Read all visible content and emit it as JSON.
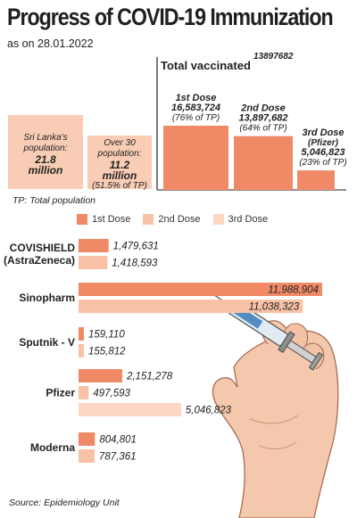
{
  "header": {
    "title": "Progress of COVID-19 Immunization",
    "subtitle": "as on 28.01.2022"
  },
  "population": {
    "sri_lanka_line1": "Sri Lanka's",
    "sri_lanka_line2": "population:",
    "sri_lanka_value": "21.8",
    "sri_lanka_unit": "million",
    "over30_line1": "Over 30",
    "over30_line2": "population:",
    "over30_value": "11.2",
    "over30_unit": "million",
    "over30_pct": "(51.5% of TP)"
  },
  "total_vaccinated": {
    "label": "Total vaccinated",
    "number": "13897682"
  },
  "doses": [
    {
      "name": "1st Dose",
      "value_text": "16,583,724",
      "pct_text": "(76% of TP)",
      "value": 16583724
    },
    {
      "name": "2nd Dose",
      "value_text": "13,897,682",
      "pct_text": "(64% of TP)",
      "value": 13897682
    },
    {
      "name": "3rd Dose",
      "name2": "(Pfizer)",
      "value_text": "5,046,823",
      "pct_text": "(23% of TP)",
      "value": 5046823
    }
  ],
  "tp_note": "TP: Total population",
  "legend": {
    "first": "1st Dose",
    "second": "2nd Dose",
    "third": "3rd Dose"
  },
  "colors": {
    "first": "#f08a66",
    "second": "#f9c2a6",
    "third": "#fbd7c4",
    "box": "#f9cdb5"
  },
  "source": "Source: Epidemiology Unit",
  "chart_data": {
    "type": "bar",
    "orientation": "horizontal",
    "categories": [
      "COVISHIELD (AstraZeneca)",
      "Sinopharm",
      "Sputnik - V",
      "Pfizer",
      "Moderna"
    ],
    "category_lines": [
      [
        "COVISHIELD",
        "(AstraZeneca)"
      ],
      [
        "Sinopharm"
      ],
      [
        "Sputnik - V"
      ],
      [
        "Pfizer"
      ],
      [
        "Moderna"
      ]
    ],
    "series": [
      {
        "name": "1st Dose",
        "values": [
          1479631,
          11988904,
          159110,
          2151278,
          804801
        ]
      },
      {
        "name": "2nd Dose",
        "values": [
          1418593,
          11038323,
          155812,
          497593,
          787361
        ]
      },
      {
        "name": "3rd Dose",
        "values": [
          null,
          null,
          null,
          5046823,
          null
        ]
      }
    ],
    "value_labels": {
      "1st Dose": [
        "1,479,631",
        "11,988,904",
        "159,110",
        "2,151,278",
        "804,801"
      ],
      "2nd Dose": [
        "1,418,593",
        "11,038,323",
        "155,812",
        "497,593",
        "787,361"
      ],
      "3rd Dose": [
        null,
        null,
        null,
        "5,046,823",
        null
      ]
    },
    "xlim": [
      0,
      12300000
    ]
  }
}
